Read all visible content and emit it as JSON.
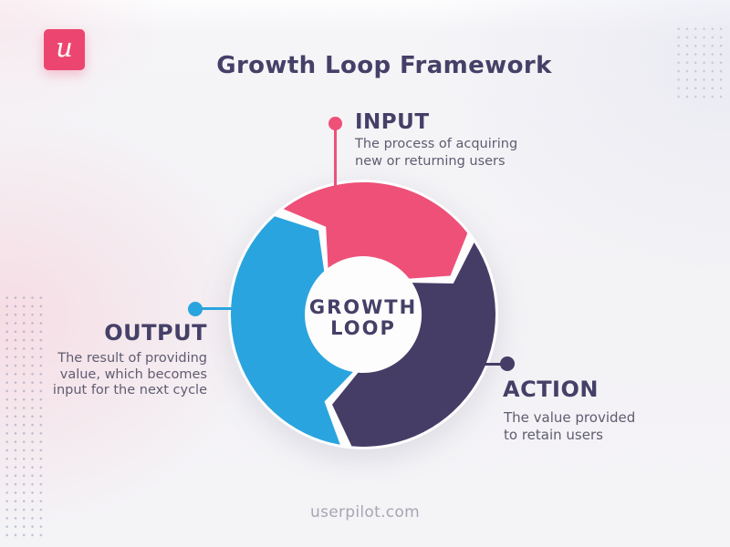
{
  "header": {
    "logo_letter": "u",
    "title": "Growth Loop Framework"
  },
  "loop": {
    "center_line1": "GROWTH",
    "center_line2": "LOOP",
    "segments": [
      {
        "id": "input",
        "label": "INPUT",
        "description": "The process of acquiring\nnew or returning users",
        "color": "#EE5078"
      },
      {
        "id": "action",
        "label": "ACTION",
        "description": "The value provided\nto retain users",
        "color": "#453D66"
      },
      {
        "id": "output",
        "label": "OUTPUT",
        "description": "The result of providing\nvalue, which becomes\ninput for the next cycle",
        "color": "#2AA4DE"
      }
    ]
  },
  "footer": {
    "url": "userpilot.com"
  },
  "colors": {
    "pink": "#EE5078",
    "navy": "#453D66",
    "blue": "#2AA4DE",
    "heading_text": "#454067",
    "body_text": "#5F5C71",
    "footer_text": "#A8A6B4",
    "logo_bg": "#EC4670",
    "center_bg": "#FDFDFE"
  }
}
